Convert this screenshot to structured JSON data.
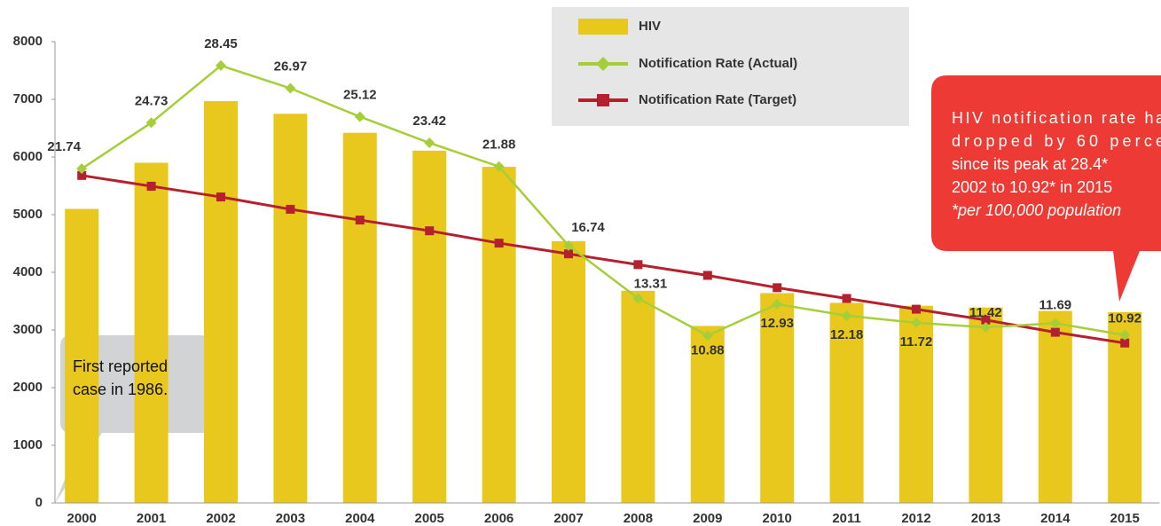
{
  "chart_data": {
    "type": "bar",
    "categories": [
      "2000",
      "2001",
      "2002",
      "2003",
      "2004",
      "2005",
      "2006",
      "2007",
      "2008",
      "2009",
      "2010",
      "2011",
      "2012",
      "2013",
      "2014",
      "2015"
    ],
    "series": [
      {
        "name": "HIV",
        "color": "#e8c81c",
        "values": [
          5100,
          5900,
          6970,
          6750,
          6420,
          6110,
          5830,
          4540,
          3680,
          3070,
          3640,
          3470,
          3420,
          3390,
          3330,
          3310
        ]
      },
      {
        "name": "Notification Rate (Actual)",
        "color": "#a6ce39",
        "axis": "y2",
        "values": [
          21.74,
          24.73,
          28.45,
          26.97,
          25.12,
          23.42,
          21.88,
          16.74,
          13.31,
          10.88,
          12.93,
          12.18,
          11.72,
          11.42,
          11.69,
          10.92
        ]
      },
      {
        "name": "Notification Rate (Target)",
        "color": "#b5202e",
        "axis": "y2",
        "values": [
          21.3,
          20.6,
          19.9,
          19.1,
          18.4,
          17.7,
          16.9,
          16.2,
          15.5,
          14.8,
          14.0,
          13.3,
          12.6,
          11.9,
          11.1,
          10.4
        ]
      }
    ],
    "ylim": [
      0,
      8000
    ],
    "yticks": [
      0,
      1000,
      2000,
      3000,
      4000,
      5000,
      6000,
      7000,
      8000
    ],
    "y2lim": [
      0,
      30
    ],
    "annotations": [
      {
        "lines": [
          "First reported",
          "case in 1986."
        ]
      },
      {
        "lines": [
          "HIV notification rate ha",
          "dropped by 60 perce",
          "since its peak at 28.4*",
          "2002 to 10.92* in 2015",
          "*per 100,000 population"
        ]
      }
    ]
  }
}
